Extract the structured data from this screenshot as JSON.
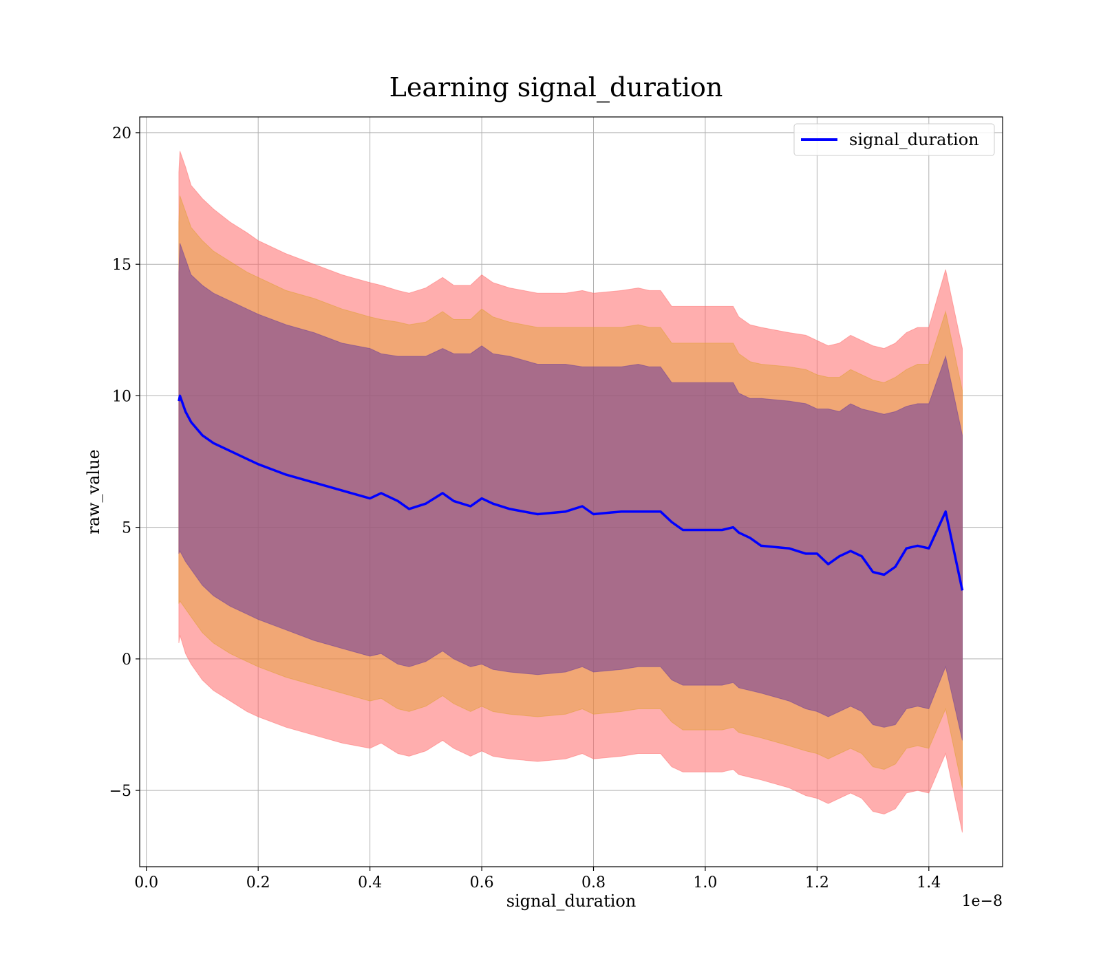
{
  "chart_data": {
    "type": "line",
    "title": "Learning signal_duration",
    "xlabel": "signal_duration",
    "ylabel": "raw_value",
    "x_offset_label": "1e−8",
    "xlim": [
      -0.012,
      1.532
    ],
    "ylim": [
      -7.9,
      20.6
    ],
    "x_ticks": [
      {
        "value": 0.0,
        "label": "0.0"
      },
      {
        "value": 0.2,
        "label": "0.2"
      },
      {
        "value": 0.4,
        "label": "0.4"
      },
      {
        "value": 0.6,
        "label": "0.6"
      },
      {
        "value": 0.8,
        "label": "0.8"
      },
      {
        "value": 1.0,
        "label": "1.0"
      },
      {
        "value": 1.2,
        "label": "1.2"
      },
      {
        "value": 1.4,
        "label": "1.4"
      }
    ],
    "y_ticks": [
      {
        "value": -5,
        "label": "−5"
      },
      {
        "value": 0,
        "label": "0"
      },
      {
        "value": 5,
        "label": "5"
      },
      {
        "value": 10,
        "label": "10"
      },
      {
        "value": 15,
        "label": "15"
      },
      {
        "value": 20,
        "label": "20"
      }
    ],
    "grid": true,
    "legend_position": "top-right",
    "colors": {
      "line": "#0000ff",
      "band_1sd": "#6b3d9a",
      "band_2sd": "#e0a030",
      "band_3sd": "#ff6b6b"
    },
    "series": [
      {
        "name": "signal_duration",
        "x": [
          0.058,
          0.06,
          0.07,
          0.08,
          0.1,
          0.12,
          0.15,
          0.18,
          0.2,
          0.25,
          0.3,
          0.35,
          0.4,
          0.42,
          0.45,
          0.47,
          0.5,
          0.53,
          0.55,
          0.58,
          0.6,
          0.62,
          0.65,
          0.7,
          0.75,
          0.78,
          0.8,
          0.85,
          0.88,
          0.9,
          0.92,
          0.94,
          0.96,
          1.0,
          1.03,
          1.05,
          1.06,
          1.08,
          1.1,
          1.15,
          1.18,
          1.2,
          1.22,
          1.24,
          1.26,
          1.28,
          1.3,
          1.32,
          1.34,
          1.36,
          1.38,
          1.4,
          1.43,
          1.46
        ],
        "y": [
          9.8,
          10.0,
          9.4,
          9.0,
          8.5,
          8.2,
          7.9,
          7.6,
          7.4,
          7.0,
          6.7,
          6.4,
          6.1,
          6.3,
          6.0,
          5.7,
          5.9,
          6.3,
          6.0,
          5.8,
          6.1,
          5.9,
          5.7,
          5.5,
          5.6,
          5.8,
          5.5,
          5.6,
          5.6,
          5.6,
          5.6,
          5.2,
          4.9,
          4.9,
          4.9,
          5.0,
          4.8,
          4.6,
          4.3,
          4.2,
          4.0,
          4.0,
          3.6,
          3.9,
          4.1,
          3.9,
          3.3,
          3.2,
          3.5,
          4.2,
          4.3,
          4.2,
          5.6,
          2.6
        ],
        "band_1sd_upper": [
          14.7,
          15.8,
          15.2,
          14.6,
          14.2,
          13.9,
          13.6,
          13.3,
          13.1,
          12.7,
          12.4,
          12.0,
          11.8,
          11.6,
          11.5,
          11.5,
          11.5,
          11.8,
          11.6,
          11.6,
          11.9,
          11.6,
          11.5,
          11.2,
          11.2,
          11.1,
          11.1,
          11.1,
          11.2,
          11.1,
          11.1,
          10.5,
          10.5,
          10.5,
          10.5,
          10.5,
          10.1,
          9.9,
          9.9,
          9.8,
          9.7,
          9.5,
          9.5,
          9.4,
          9.7,
          9.5,
          9.4,
          9.3,
          9.4,
          9.6,
          9.7,
          9.7,
          11.5,
          8.5
        ],
        "band_1sd_lower": [
          4.0,
          4.1,
          3.7,
          3.4,
          2.8,
          2.4,
          2.0,
          1.7,
          1.5,
          1.1,
          0.7,
          0.4,
          0.1,
          0.2,
          -0.2,
          -0.3,
          -0.1,
          0.3,
          0.0,
          -0.3,
          -0.2,
          -0.4,
          -0.5,
          -0.6,
          -0.5,
          -0.3,
          -0.5,
          -0.4,
          -0.3,
          -0.3,
          -0.3,
          -0.8,
          -1.0,
          -1.0,
          -1.0,
          -0.9,
          -1.1,
          -1.2,
          -1.3,
          -1.6,
          -1.9,
          -2.0,
          -2.2,
          -2.0,
          -1.8,
          -2.0,
          -2.5,
          -2.6,
          -2.5,
          -1.9,
          -1.8,
          -1.9,
          -0.3,
          -3.1
        ],
        "band_2sd_upper": [
          16.6,
          17.6,
          17.0,
          16.4,
          15.9,
          15.5,
          15.1,
          14.7,
          14.5,
          14.0,
          13.7,
          13.3,
          13.0,
          12.9,
          12.8,
          12.7,
          12.8,
          13.2,
          12.9,
          12.9,
          13.3,
          13.0,
          12.8,
          12.6,
          12.6,
          12.6,
          12.6,
          12.6,
          12.7,
          12.6,
          12.6,
          12.0,
          12.0,
          12.0,
          12.0,
          12.0,
          11.6,
          11.3,
          11.2,
          11.1,
          11.0,
          10.8,
          10.7,
          10.7,
          11.0,
          10.8,
          10.6,
          10.5,
          10.7,
          11.0,
          11.2,
          11.2,
          13.2,
          10.2
        ],
        "band_2sd_lower": [
          2.1,
          2.2,
          1.9,
          1.6,
          1.0,
          0.6,
          0.2,
          -0.1,
          -0.3,
          -0.7,
          -1.0,
          -1.3,
          -1.6,
          -1.5,
          -1.9,
          -2.0,
          -1.8,
          -1.4,
          -1.7,
          -2.0,
          -1.8,
          -2.0,
          -2.1,
          -2.2,
          -2.1,
          -1.9,
          -2.1,
          -2.0,
          -1.9,
          -1.9,
          -1.9,
          -2.4,
          -2.7,
          -2.7,
          -2.7,
          -2.6,
          -2.8,
          -2.9,
          -3.0,
          -3.3,
          -3.5,
          -3.6,
          -3.8,
          -3.6,
          -3.4,
          -3.6,
          -4.1,
          -4.2,
          -4.0,
          -3.4,
          -3.3,
          -3.4,
          -1.9,
          -4.9
        ],
        "band_3sd_upper": [
          18.5,
          19.3,
          18.7,
          18.0,
          17.5,
          17.1,
          16.6,
          16.2,
          15.9,
          15.4,
          15.0,
          14.6,
          14.3,
          14.2,
          14.0,
          13.9,
          14.1,
          14.5,
          14.2,
          14.2,
          14.6,
          14.3,
          14.1,
          13.9,
          13.9,
          14.0,
          13.9,
          14.0,
          14.1,
          14.0,
          14.0,
          13.4,
          13.4,
          13.4,
          13.4,
          13.4,
          13.0,
          12.7,
          12.6,
          12.4,
          12.3,
          12.1,
          11.9,
          12.0,
          12.3,
          12.1,
          11.9,
          11.8,
          12.0,
          12.4,
          12.6,
          12.6,
          14.8,
          11.8
        ],
        "band_3sd_lower": [
          0.6,
          0.9,
          0.2,
          -0.2,
          -0.8,
          -1.2,
          -1.6,
          -2.0,
          -2.2,
          -2.6,
          -2.9,
          -3.2,
          -3.4,
          -3.2,
          -3.6,
          -3.7,
          -3.5,
          -3.1,
          -3.4,
          -3.7,
          -3.5,
          -3.7,
          -3.8,
          -3.9,
          -3.8,
          -3.6,
          -3.8,
          -3.7,
          -3.6,
          -3.6,
          -3.6,
          -4.1,
          -4.3,
          -4.3,
          -4.3,
          -4.2,
          -4.4,
          -4.5,
          -4.6,
          -4.9,
          -5.2,
          -5.3,
          -5.5,
          -5.3,
          -5.1,
          -5.3,
          -5.8,
          -5.9,
          -5.7,
          -5.1,
          -5.0,
          -5.1,
          -3.6,
          -6.6
        ]
      }
    ]
  }
}
